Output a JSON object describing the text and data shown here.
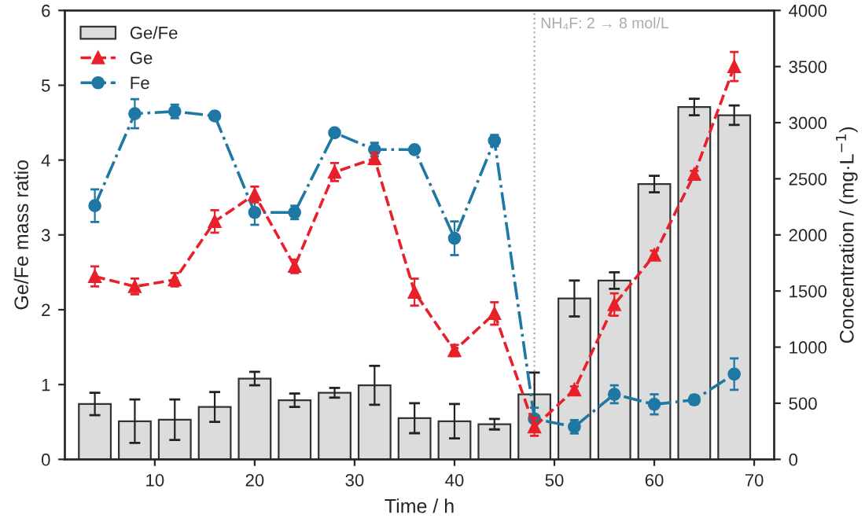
{
  "chart_data": {
    "type": "bar",
    "xlabel": "Time / h",
    "ylabel": "Ge/Fe mass ratio",
    "y2label": "Concentration / (mg·L$^{−1}$)",
    "x": [
      4,
      8,
      12,
      16,
      20,
      24,
      28,
      32,
      36,
      40,
      44,
      48,
      52,
      56,
      60,
      64,
      68
    ],
    "xlim": [
      1,
      72
    ],
    "xticks": [
      10,
      20,
      30,
      40,
      50,
      60,
      70
    ],
    "ylim": [
      0,
      6
    ],
    "yticks": [
      0,
      1,
      2,
      3,
      4,
      5,
      6
    ],
    "y2lim": [
      0,
      4000
    ],
    "y2ticks": [
      0,
      500,
      1000,
      1500,
      2000,
      2500,
      3000,
      3500,
      4000
    ],
    "series": [
      {
        "name": "Ge/Fe",
        "color": "#dcdcdc",
        "values": [
          0.74,
          0.51,
          0.53,
          0.7,
          1.08,
          0.79,
          0.89,
          0.99,
          0.55,
          0.51,
          0.47,
          0.87,
          2.15,
          2.39,
          3.68,
          4.71,
          4.6
        ],
        "errors": [
          0.15,
          0.29,
          0.27,
          0.2,
          0.09,
          0.09,
          0.065,
          0.26,
          0.2,
          0.23,
          0.07,
          0.29,
          0.24,
          0.11,
          0.11,
          0.11,
          0.13
        ]
      },
      {
        "name": "Ge",
        "type": "line",
        "axis": "y2",
        "color": "#e8202a",
        "marker": "triangle",
        "line_style": "dashed",
        "values": [
          1630,
          1540,
          1600,
          2120,
          2360,
          1720,
          2560,
          2680,
          1490,
          970,
          1300,
          290,
          620,
          1380,
          1820,
          2540,
          3500
        ],
        "errors": [
          90,
          70,
          60,
          100,
          70,
          60,
          80,
          50,
          120,
          50,
          100,
          80,
          30,
          100,
          40,
          30,
          130
        ]
      },
      {
        "name": "Fe",
        "type": "line",
        "axis": "y2",
        "color": "#1f77a4",
        "marker": "circle",
        "line_style": "dashdot",
        "values": [
          2260,
          3080,
          3100,
          3060,
          2200,
          2200,
          2910,
          2760,
          2760,
          1970,
          2840,
          360,
          290,
          580,
          490,
          530,
          760
        ],
        "errors": [
          145,
          130,
          60,
          30,
          110,
          60,
          30,
          60,
          null,
          150,
          50,
          100,
          60,
          80,
          90,
          40,
          140
        ]
      }
    ],
    "ref_lines": [
      {
        "axis": "x",
        "value": 48,
        "color": "#aaaaaa",
        "line_style": "dotted"
      }
    ],
    "annotations": [
      "NH₄F: 2 → 8 mol/L"
    ],
    "legend": "top left",
    "grid": false
  }
}
